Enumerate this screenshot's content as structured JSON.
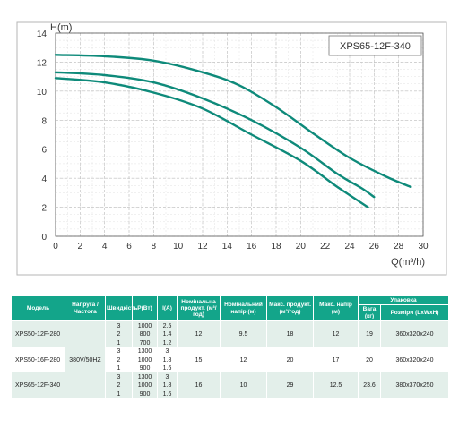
{
  "chart_data": {
    "type": "line",
    "title": "XPS65-12F-340",
    "xlabel": "Q(m³/h)",
    "ylabel": "H(m)",
    "xlim": [
      0,
      30
    ],
    "ylim": [
      0,
      14
    ],
    "xticks": [
      0,
      2,
      4,
      6,
      8,
      10,
      12,
      14,
      16,
      18,
      20,
      22,
      24,
      26,
      28,
      30
    ],
    "yticks": [
      0,
      2,
      4,
      6,
      8,
      10,
      12,
      14
    ],
    "grid": true,
    "line_color": "#0e8a7a",
    "series": [
      {
        "points": [
          [
            0,
            12.5
          ],
          [
            4,
            12.4
          ],
          [
            8,
            12.1
          ],
          [
            12,
            11.3
          ],
          [
            15,
            10.4
          ],
          [
            18,
            8.9
          ],
          [
            21,
            7.1
          ],
          [
            24,
            5.4
          ],
          [
            27,
            4.1
          ],
          [
            29,
            3.4
          ]
        ]
      },
      {
        "points": [
          [
            0,
            11.3
          ],
          [
            4,
            11.1
          ],
          [
            8,
            10.6
          ],
          [
            12,
            9.5
          ],
          [
            16,
            8.0
          ],
          [
            20,
            6.1
          ],
          [
            23,
            4.3
          ],
          [
            25,
            3.3
          ],
          [
            26,
            2.7
          ]
        ]
      },
      {
        "points": [
          [
            0,
            10.9
          ],
          [
            4,
            10.6
          ],
          [
            8,
            9.9
          ],
          [
            12,
            8.8
          ],
          [
            16,
            7.0
          ],
          [
            20,
            5.2
          ],
          [
            23,
            3.4
          ],
          [
            25.5,
            2.0
          ]
        ]
      }
    ]
  },
  "table": {
    "headers": {
      "model": "Модель",
      "voltage": "Напруга /Частота",
      "speed": "Швидкість",
      "power": "P(Вт)",
      "current": "I(A)",
      "rated_flow": "Номінальна продукт. (м³/год)",
      "rated_head": "Номінальний напір (м)",
      "max_flow": "Макс. продукт. (м³/год)",
      "max_head": "Макс. напір (м)",
      "packaging": "Упаковка",
      "weight": "Вага (кг)",
      "dimensions": "Розміри (LxWxH)"
    },
    "voltage_value": "380V/50HZ",
    "models": [
      {
        "model": "XPS50-12F-280",
        "rows": [
          [
            "3",
            "1000",
            "2.5"
          ],
          [
            "2",
            "800",
            "1.4"
          ],
          [
            "1",
            "700",
            "1.2"
          ]
        ],
        "rated_flow": "12",
        "rated_head": "9.5",
        "max_flow": "18",
        "max_head": "12",
        "weight": "19",
        "dims": "360x320x240"
      },
      {
        "model": "XPS50-16F-280",
        "rows": [
          [
            "3",
            "1300",
            "3"
          ],
          [
            "2",
            "1000",
            "1.8"
          ],
          [
            "1",
            "900",
            "1.6"
          ]
        ],
        "rated_flow": "15",
        "rated_head": "12",
        "max_flow": "20",
        "max_head": "17",
        "weight": "20",
        "dims": "360x320x240"
      },
      {
        "model": "XPS65-12F-340",
        "rows": [
          [
            "3",
            "1300",
            "3"
          ],
          [
            "2",
            "1000",
            "1.8"
          ],
          [
            "1",
            "900",
            "1.6"
          ]
        ],
        "rated_flow": "16",
        "rated_head": "10",
        "max_flow": "29",
        "max_head": "12.5",
        "weight": "23.6",
        "dims": "380x370x250"
      }
    ]
  }
}
